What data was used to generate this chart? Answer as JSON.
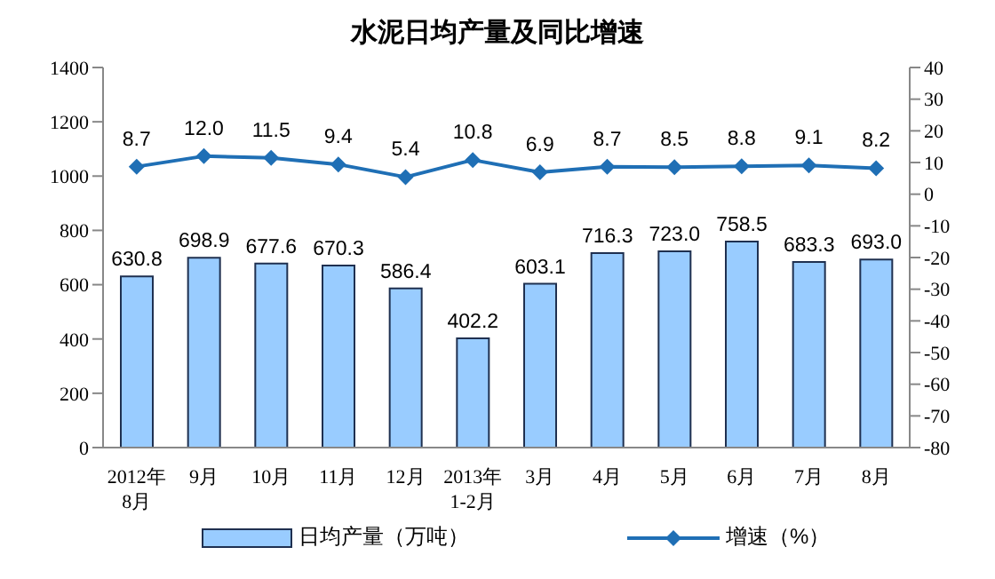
{
  "chart_data": {
    "type": "bar",
    "title": "水泥日均产量及同比增速",
    "categories": [
      "2012年\n8月",
      "9月",
      "10月",
      "11月",
      "12月",
      "2013年\n1-2月",
      "3月",
      "4月",
      "5月",
      "6月",
      "7月",
      "8月"
    ],
    "series": [
      {
        "name": "日均产量（万吨）",
        "color": "#99ccff",
        "values": [
          630.8,
          698.9,
          677.6,
          670.3,
          586.4,
          402.2,
          603.1,
          716.3,
          723.0,
          758.5,
          683.3,
          693.0
        ],
        "value_labels": [
          "630.8",
          "698.9",
          "677.6",
          "670.3",
          "586.4",
          "402.2",
          "603.1",
          "716.3",
          "723.0",
          "758.5",
          "683.3",
          "693.0"
        ]
      },
      {
        "name": "增速（%）",
        "type": "line",
        "axis": "y2",
        "color": "#1f6fb5",
        "values": [
          8.7,
          12.0,
          11.5,
          9.4,
          5.4,
          10.8,
          6.9,
          8.7,
          8.5,
          8.8,
          9.1,
          8.2
        ],
        "value_labels": [
          "8.7",
          "12.0",
          "11.5",
          "9.4",
          "5.4",
          "10.8",
          "6.9",
          "8.7",
          "8.5",
          "8.8",
          "9.1",
          "8.2"
        ]
      }
    ],
    "ylim": [
      0,
      1400
    ],
    "yticks": [
      0,
      200,
      400,
      600,
      800,
      1000,
      1200,
      1400
    ],
    "y2lim": [
      -80,
      40
    ],
    "y2ticks": [
      -80,
      -70,
      -60,
      -50,
      -40,
      -30,
      -20,
      -10,
      0,
      10,
      20,
      30,
      40
    ],
    "legend": "bottom",
    "marker": "diamond",
    "line_style": "solid"
  }
}
